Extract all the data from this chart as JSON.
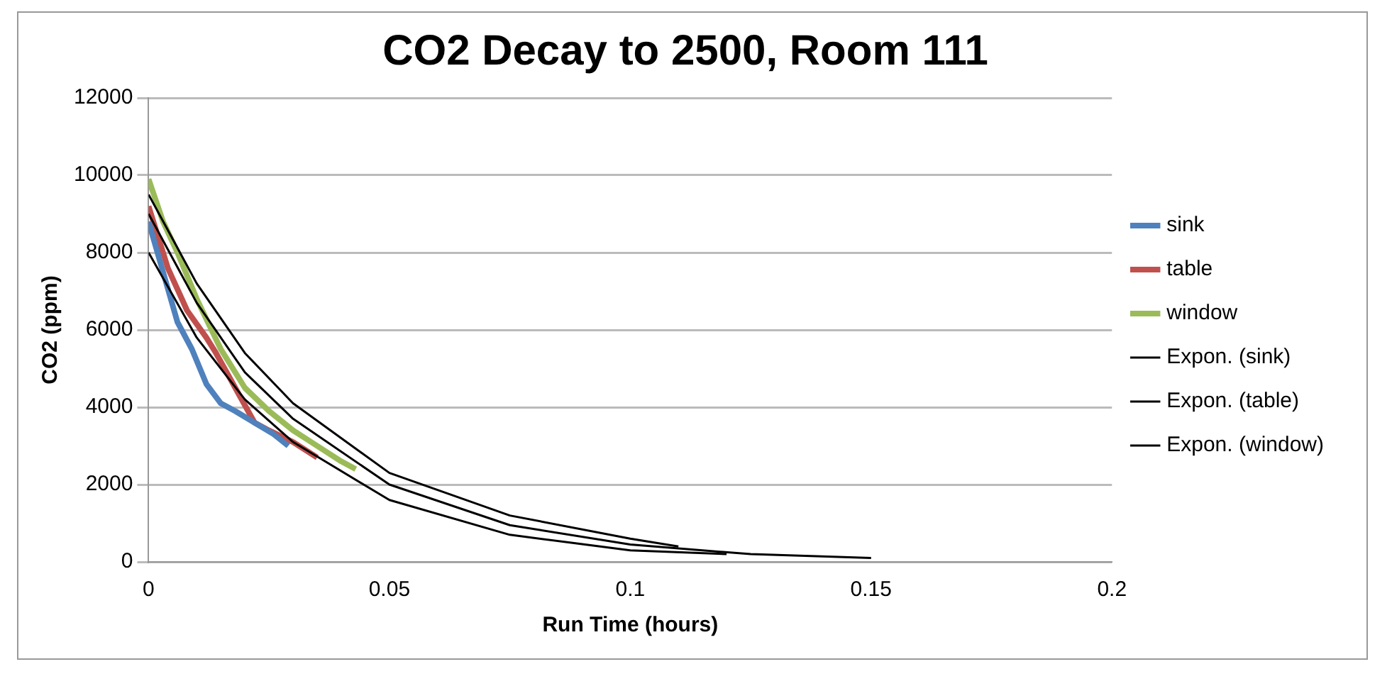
{
  "chart_data": {
    "type": "line",
    "title": "CO2 Decay to 2500, Room 111",
    "xlabel": "Run Time (hours)",
    "ylabel": "CO2 (ppm)",
    "xlim": [
      0,
      0.2
    ],
    "xticks": [
      0,
      0.05,
      0.1,
      0.15,
      0.2
    ],
    "ylim": [
      0,
      12000
    ],
    "yticks": [
      0,
      2000,
      4000,
      6000,
      8000,
      10000,
      12000
    ],
    "grid": "y",
    "legend": "right",
    "marker": "none",
    "series": [
      {
        "name": "sink",
        "color": "#4f81bd",
        "x": [
          0,
          0.003,
          0.006,
          0.009,
          0.012,
          0.015,
          0.018,
          0.022,
          0.026,
          0.029
        ],
        "values": [
          8800,
          7500,
          6200,
          5500,
          4600,
          4100,
          3900,
          3600,
          3300,
          3000
        ]
      },
      {
        "name": "table",
        "color": "#c0504d",
        "x": [
          0,
          0.004,
          0.008,
          0.012,
          0.014,
          0.018,
          0.022,
          0.025,
          0.03,
          0.035
        ],
        "values": [
          9200,
          7600,
          6500,
          5800,
          5400,
          4500,
          3600,
          3400,
          3100,
          2700
        ]
      },
      {
        "name": "window",
        "color": "#9bbb59",
        "x": [
          0,
          0.003,
          0.006,
          0.01,
          0.015,
          0.02,
          0.025,
          0.03,
          0.035,
          0.04,
          0.043
        ],
        "values": [
          9900,
          8800,
          8000,
          6800,
          5500,
          4500,
          3900,
          3400,
          3000,
          2600,
          2400
        ]
      },
      {
        "name": "Expon. (sink)",
        "color": "#000000",
        "x": [
          0,
          0.01,
          0.02,
          0.03,
          0.05,
          0.075,
          0.1,
          0.12
        ],
        "values": [
          8000,
          5800,
          4200,
          3100,
          1600,
          700,
          300,
          200
        ]
      },
      {
        "name": "Expon. (table)",
        "color": "#000000",
        "x": [
          0,
          0.01,
          0.02,
          0.03,
          0.05,
          0.075,
          0.1,
          0.125,
          0.15
        ],
        "values": [
          9000,
          6700,
          4900,
          3700,
          2000,
          950,
          450,
          200,
          100
        ]
      },
      {
        "name": "Expon. (window)",
        "color": "#000000",
        "x": [
          0,
          0.01,
          0.02,
          0.03,
          0.05,
          0.075,
          0.1,
          0.11
        ],
        "values": [
          9500,
          7200,
          5400,
          4100,
          2300,
          1200,
          600,
          400
        ]
      }
    ]
  }
}
